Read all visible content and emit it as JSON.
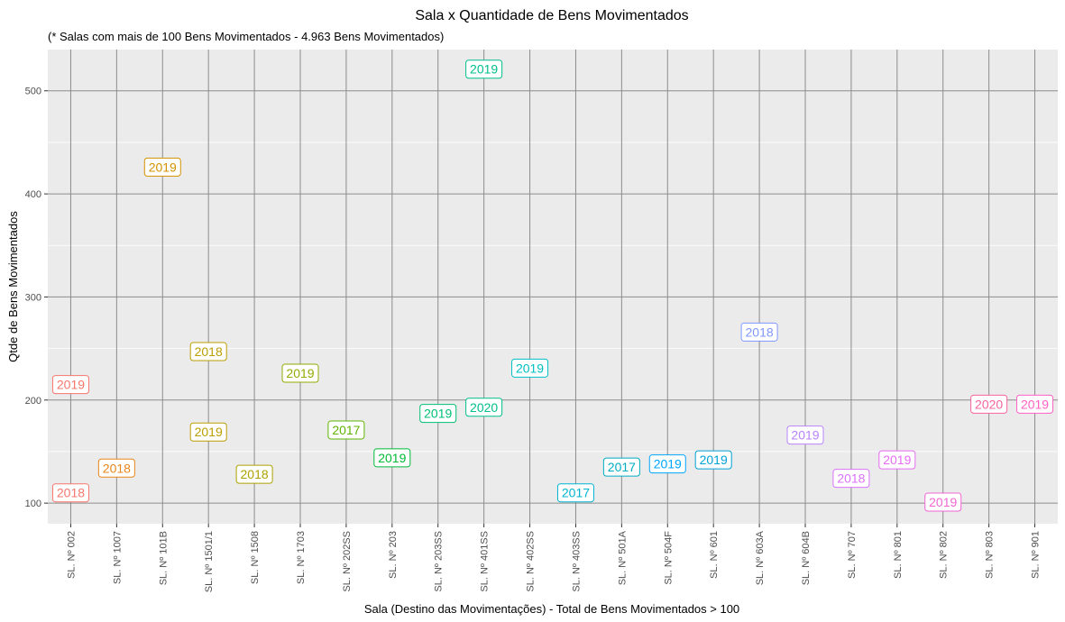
{
  "chart_data": {
    "type": "scatter",
    "title": "Sala x Quantidade de Bens Movimentados",
    "subtitle": "(* Salas com mais de  100  Bens Movimentados -  4.963  Bens Movimentados)",
    "xlabel": "Sala (Destino das Movimentações) - Total de Bens Movimentados >  100",
    "ylabel": "Qtde de Bens Movimentados",
    "ylim": [
      80,
      540
    ],
    "yticks": [
      100,
      200,
      300,
      400,
      500
    ],
    "grid": true,
    "categories": [
      "SL. Nº 002",
      "SL. Nº 1007",
      "SL. Nº 101B",
      "SL. Nº 1501/1",
      "SL. Nº 1508",
      "SL. Nº 1703",
      "SL. Nº 202SS",
      "SL. Nº 203",
      "SL. Nº 203SS",
      "SL. Nº 401SS",
      "SL. Nº 402SS",
      "SL. Nº 403SS",
      "SL. Nº 501A",
      "SL. Nº 504F",
      "SL. Nº 601",
      "SL. Nº 603A",
      "SL. Nº 604B",
      "SL. Nº 707",
      "SL. Nº 801",
      "SL. Nº 802",
      "SL. Nº 803",
      "SL. Nº 901"
    ],
    "colors": [
      "#F8766D",
      "#E7861B",
      "#D39200",
      "#BB9D00",
      "#ADA100",
      "#93AA00",
      "#5EB300",
      "#00BA38",
      "#00BF74",
      "#00C08B",
      "#00BFC4",
      "#00B4D2",
      "#00ACC1",
      "#00A5FF",
      "#00A1D5",
      "#7F96FF",
      "#B983FF",
      "#DB72FB",
      "#E76BF3",
      "#F265D4",
      "#F8639E",
      "#FF61C3"
    ],
    "points": [
      {
        "x": "SL. Nº 002",
        "y": 215,
        "label": "2019"
      },
      {
        "x": "SL. Nº 002",
        "y": 110,
        "label": "2018"
      },
      {
        "x": "SL. Nº 1007",
        "y": 134,
        "label": "2018"
      },
      {
        "x": "SL. Nº 101B",
        "y": 426,
        "label": "2019"
      },
      {
        "x": "SL. Nº 1501/1",
        "y": 247,
        "label": "2018"
      },
      {
        "x": "SL. Nº 1501/1",
        "y": 169,
        "label": "2019"
      },
      {
        "x": "SL. Nº 1508",
        "y": 128,
        "label": "2018"
      },
      {
        "x": "SL. Nº 1703",
        "y": 226,
        "label": "2019"
      },
      {
        "x": "SL. Nº 202SS",
        "y": 171,
        "label": "2017"
      },
      {
        "x": "SL. Nº 203",
        "y": 144,
        "label": "2019"
      },
      {
        "x": "SL. Nº 203SS",
        "y": 187,
        "label": "2019"
      },
      {
        "x": "SL. Nº 401SS",
        "y": 521,
        "label": "2019"
      },
      {
        "x": "SL. Nº 401SS",
        "y": 193,
        "label": "2020"
      },
      {
        "x": "SL. Nº 402SS",
        "y": 231,
        "label": "2019"
      },
      {
        "x": "SL. Nº 403SS",
        "y": 110,
        "label": "2017"
      },
      {
        "x": "SL. Nº 501A",
        "y": 135,
        "label": "2017"
      },
      {
        "x": "SL. Nº 504F",
        "y": 138,
        "label": "2019"
      },
      {
        "x": "SL. Nº 601",
        "y": 142,
        "label": "2019"
      },
      {
        "x": "SL. Nº 603A",
        "y": 266,
        "label": "2018"
      },
      {
        "x": "SL. Nº 604B",
        "y": 166,
        "label": "2019"
      },
      {
        "x": "SL. Nº 707",
        "y": 124,
        "label": "2018"
      },
      {
        "x": "SL. Nº 801",
        "y": 142,
        "label": "2019"
      },
      {
        "x": "SL. Nº 802",
        "y": 101,
        "label": "2019"
      },
      {
        "x": "SL. Nº 803",
        "y": 196,
        "label": "2020"
      },
      {
        "x": "SL. Nº 901",
        "y": 196,
        "label": "2019"
      }
    ]
  }
}
